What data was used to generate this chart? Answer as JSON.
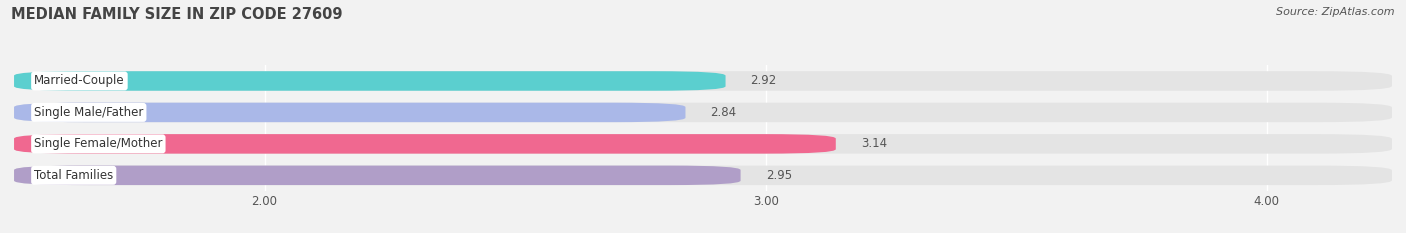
{
  "title": "MEDIAN FAMILY SIZE IN ZIP CODE 27609",
  "source": "Source: ZipAtlas.com",
  "categories": [
    "Married-Couple",
    "Single Male/Father",
    "Single Female/Mother",
    "Total Families"
  ],
  "values": [
    2.92,
    2.84,
    3.14,
    2.95
  ],
  "bar_colors": [
    "#5bcfcf",
    "#aab8e8",
    "#f06890",
    "#b09ec8"
  ],
  "bar_label_bg": "#ffffff",
  "xlim_min": 1.5,
  "xlim_max": 4.25,
  "xticks": [
    2.0,
    3.0,
    4.0
  ],
  "xtick_labels": [
    "2.00",
    "3.00",
    "4.00"
  ],
  "bar_height": 0.62,
  "label_fontsize": 8.5,
  "value_fontsize": 8.5,
  "title_fontsize": 10.5,
  "source_fontsize": 8,
  "background_color": "#f2f2f2",
  "bar_background_color": "#e4e4e4",
  "grid_color": "#ffffff",
  "text_color": "#555555",
  "title_color": "#444444"
}
